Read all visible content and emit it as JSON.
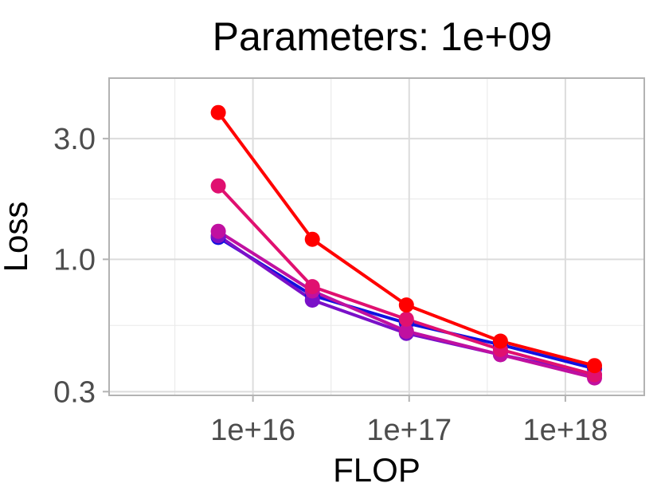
{
  "chart_data": {
    "type": "line",
    "title": "Parameters: 1e+09",
    "xlabel": "FLOP",
    "ylabel": "Loss",
    "x_scale": "log10",
    "y_scale": "log10",
    "xlim": [
      1200000000000000.0,
      3.2e+18
    ],
    "ylim": [
      0.29,
      5.2
    ],
    "x_ticks": [
      {
        "value": 1e+16,
        "label": "1e+16"
      },
      {
        "value": 1e+17,
        "label": "1e+17"
      },
      {
        "value": 1e+18,
        "label": "1e+18"
      }
    ],
    "y_ticks": [
      {
        "value": 0.3,
        "label": "0.3"
      },
      {
        "value": 1.0,
        "label": "1.0"
      },
      {
        "value": 3.0,
        "label": "3.0"
      }
    ],
    "grid": true,
    "legend": "none",
    "series": [
      {
        "color": "#1010e0",
        "x": [
          6000000000000000.0,
          2.4e+16,
          9.6e+16,
          3.84e+17,
          1.536e+18
        ],
        "y": [
          1.22,
          0.72,
          0.56,
          0.46,
          0.37
        ]
      },
      {
        "color": "#7a10c8",
        "x": [
          6000000000000000.0,
          2.4e+16,
          9.6e+16,
          3.84e+17,
          1.536e+18
        ],
        "y": [
          1.24,
          0.69,
          0.51,
          0.42,
          0.35
        ]
      },
      {
        "color": "#c010a0",
        "x": [
          6000000000000000.0,
          2.4e+16,
          9.6e+16,
          3.84e+17,
          1.536e+18
        ],
        "y": [
          1.29,
          0.75,
          0.52,
          0.42,
          0.34
        ]
      },
      {
        "color": "#e01070",
        "x": [
          6000000000000000.0,
          2.4e+16,
          9.6e+16,
          3.84e+17,
          1.536e+18
        ],
        "y": [
          1.95,
          0.78,
          0.58,
          0.44,
          0.35
        ]
      },
      {
        "color": "#ff0000",
        "x": [
          6000000000000000.0,
          2.4e+16,
          9.6e+16,
          3.84e+17,
          1.536e+18
        ],
        "y": [
          3.8,
          1.2,
          0.66,
          0.475,
          0.38
        ]
      }
    ]
  }
}
